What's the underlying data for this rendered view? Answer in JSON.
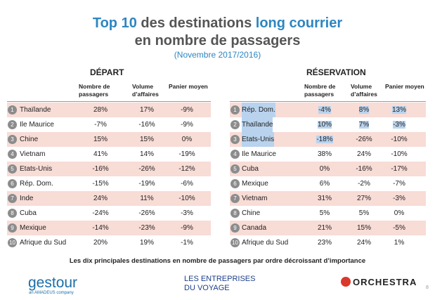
{
  "title": {
    "parts": [
      "Top 10",
      "des destinations",
      "long courrier"
    ],
    "line2": "en nombre de passagers",
    "subtitle": "(Novembre 2017/2016)"
  },
  "tables": [
    {
      "heading": "DÉPART",
      "columns": [
        "Nombre de passagers",
        "Volume d’affaires",
        "Panier moyen"
      ],
      "rows": [
        [
          "1",
          "Thaïlande",
          "28%",
          "17%",
          "-9%"
        ],
        [
          "2",
          "Ile Maurice",
          "-7%",
          "-16%",
          "-9%"
        ],
        [
          "3",
          "Chine",
          "15%",
          "15%",
          "0%"
        ],
        [
          "4",
          "Vietnam",
          "41%",
          "14%",
          "-19%"
        ],
        [
          "5",
          "Etats-Unis",
          "-16%",
          "-26%",
          "-12%"
        ],
        [
          "6",
          "Rép. Dom.",
          "-15%",
          "-19%",
          "-6%"
        ],
        [
          "7",
          "Inde",
          "24%",
          "11%",
          "-10%"
        ],
        [
          "8",
          "Cuba",
          "-24%",
          "-26%",
          "-3%"
        ],
        [
          "9",
          "Mexique",
          "-14%",
          "-23%",
          "-9%"
        ],
        [
          "10",
          "Afrique du Sud",
          "20%",
          "19%",
          "-1%"
        ]
      ]
    },
    {
      "heading": "RÉSERVATION",
      "columns": [
        "Nombre de passagers",
        "Volume d’affaires",
        "Panier moyen"
      ],
      "rows": [
        [
          "1",
          "Rép. Dom.",
          "-4%",
          "8%",
          "13%"
        ],
        [
          "2",
          "Thaïlande",
          "10%",
          "7%",
          "-3%"
        ],
        [
          "3",
          "Etats-Unis",
          "-18%",
          "-26%",
          "-10%"
        ],
        [
          "4",
          "Ile Maurice",
          "38%",
          "24%",
          "-10%"
        ],
        [
          "5",
          "Cuba",
          "0%",
          "-16%",
          "-17%"
        ],
        [
          "6",
          "Mexique",
          "6%",
          "-2%",
          "-7%"
        ],
        [
          "7",
          "Vietnam",
          "31%",
          "27%",
          "-3%"
        ],
        [
          "8",
          "Chine",
          "5%",
          "5%",
          "0%"
        ],
        [
          "9",
          "Canada",
          "21%",
          "15%",
          "-5%"
        ],
        [
          "10",
          "Afrique du Sud",
          "23%",
          "24%",
          "1%"
        ]
      ]
    }
  ],
  "caption": "Les dix principales destinations en nombre de passagers par ordre décroissant d’importance",
  "footer": {
    "logo_left": "gestour",
    "logo_left_sub": "an AMADEUS company",
    "logo_center": [
      "LES ENTREPRISES",
      "DU VOYAGE"
    ],
    "logo_right": "ORCHESTRA",
    "page_number": "8"
  }
}
